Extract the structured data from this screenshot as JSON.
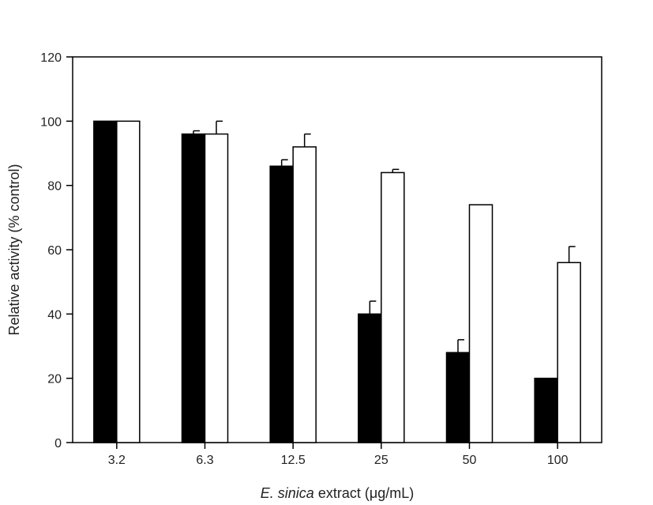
{
  "chart_data": {
    "type": "bar",
    "title": "",
    "xlabel_italic": "E. sinica",
    "xlabel_rest": " extract (μg/mL)",
    "ylabel": "Relative activity (% control)",
    "categories": [
      "3.2",
      "6.3",
      "12.5",
      "25",
      "50",
      "100"
    ],
    "ylim": [
      0,
      120
    ],
    "yticks": [
      "0",
      "20",
      "40",
      "60",
      "80",
      "100",
      "120"
    ],
    "grid": false,
    "legend": "none",
    "series": [
      {
        "fill": "#000000",
        "values": [
          100,
          96,
          86,
          40,
          28,
          20
        ],
        "errors": [
          0,
          1,
          2,
          4,
          4,
          0
        ]
      },
      {
        "fill": "#ffffff",
        "values": [
          100,
          96,
          92,
          84,
          74,
          56
        ],
        "errors": [
          0,
          4,
          4,
          1,
          0,
          5
        ]
      }
    ]
  }
}
